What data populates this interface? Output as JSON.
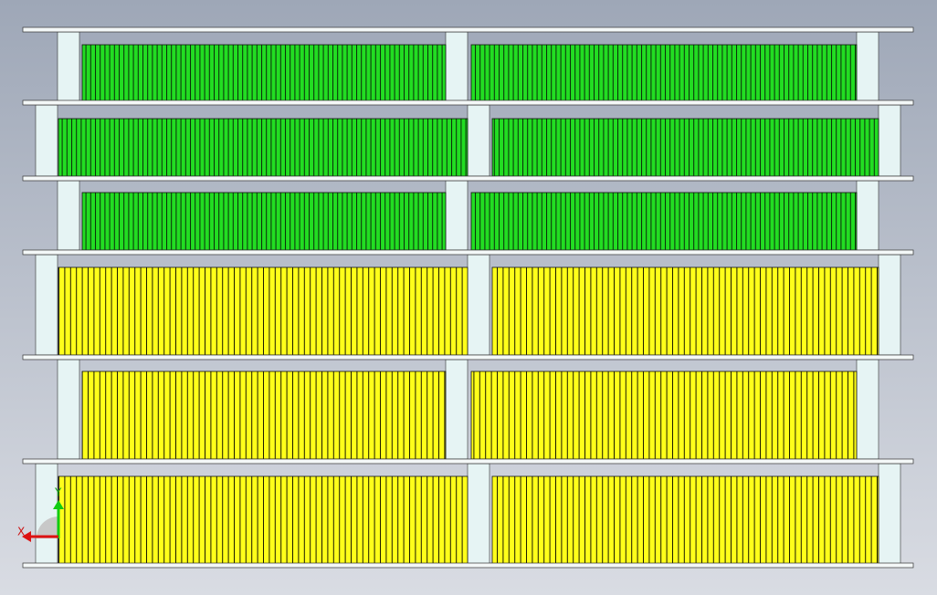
{
  "viewport": {
    "axis_labels": {
      "x": "X",
      "y": "Y"
    }
  }
}
